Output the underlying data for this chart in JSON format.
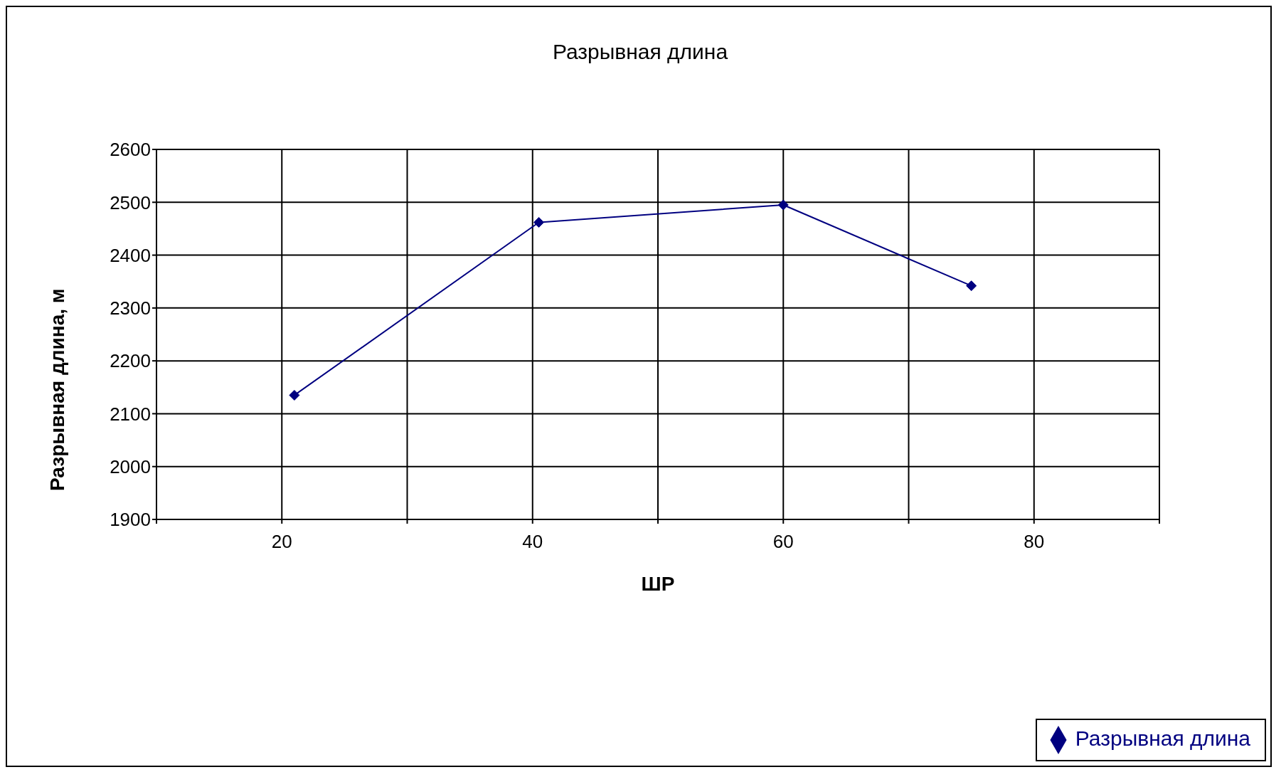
{
  "chart_data": {
    "type": "line",
    "title": "Разрывная длина",
    "xlabel": "ШР",
    "ylabel": "Разрывная длина, м",
    "series": [
      {
        "name": "Разрывная длина",
        "color": "#000080",
        "x": [
          21,
          40.5,
          60,
          75
        ],
        "values": [
          2135,
          2462,
          2495,
          2342
        ]
      }
    ],
    "xlim": [
      10,
      90
    ],
    "xticks": [
      {
        "value": 10,
        "label": null
      },
      20,
      {
        "value": 30,
        "label": null
      },
      40,
      {
        "value": 50,
        "label": null
      },
      60,
      {
        "value": 70,
        "label": null
      },
      80,
      {
        "value": 90,
        "label": null
      }
    ],
    "ylim": [
      1900,
      2600
    ],
    "yticks": [
      1900,
      2000,
      2100,
      2200,
      2300,
      2400,
      2500,
      2600
    ],
    "grid": true,
    "legend": "bottom right",
    "marker": "diamond",
    "line_style": "solid"
  }
}
